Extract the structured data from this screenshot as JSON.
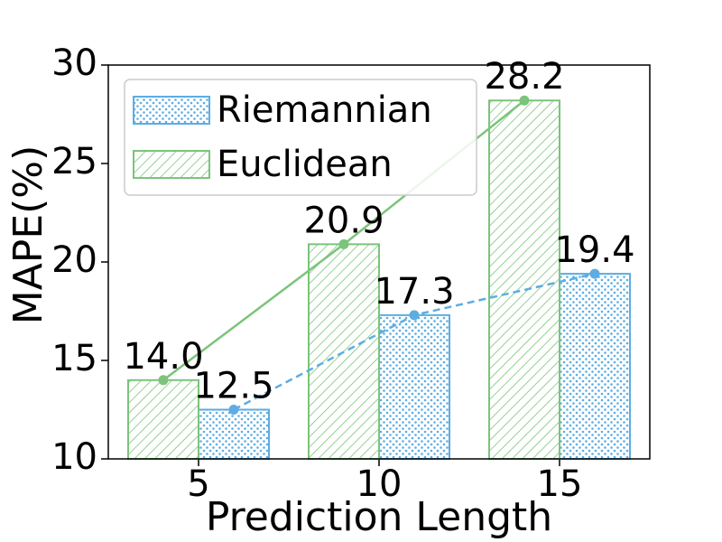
{
  "chart_data": {
    "type": "bar",
    "x_label": "Prediction Length",
    "y_label": "MAPE(%)",
    "categories": [
      "5",
      "10",
      "15"
    ],
    "series": [
      {
        "name": "Riemannian",
        "color": "#5dade2",
        "values": [
          12.5,
          17.3,
          19.4
        ],
        "value_labels": [
          "12.5",
          "17.3",
          "19.4"
        ]
      },
      {
        "name": "Euclidean",
        "color": "#7bc47b",
        "values": [
          14,
          20.9,
          28.2
        ],
        "value_labels": [
          "14.0",
          "20.9",
          "28.2"
        ]
      }
    ],
    "ylim": [
      10,
      30
    ],
    "yticks": [
      10,
      15,
      20,
      25,
      30
    ],
    "legend": "upper left"
  }
}
